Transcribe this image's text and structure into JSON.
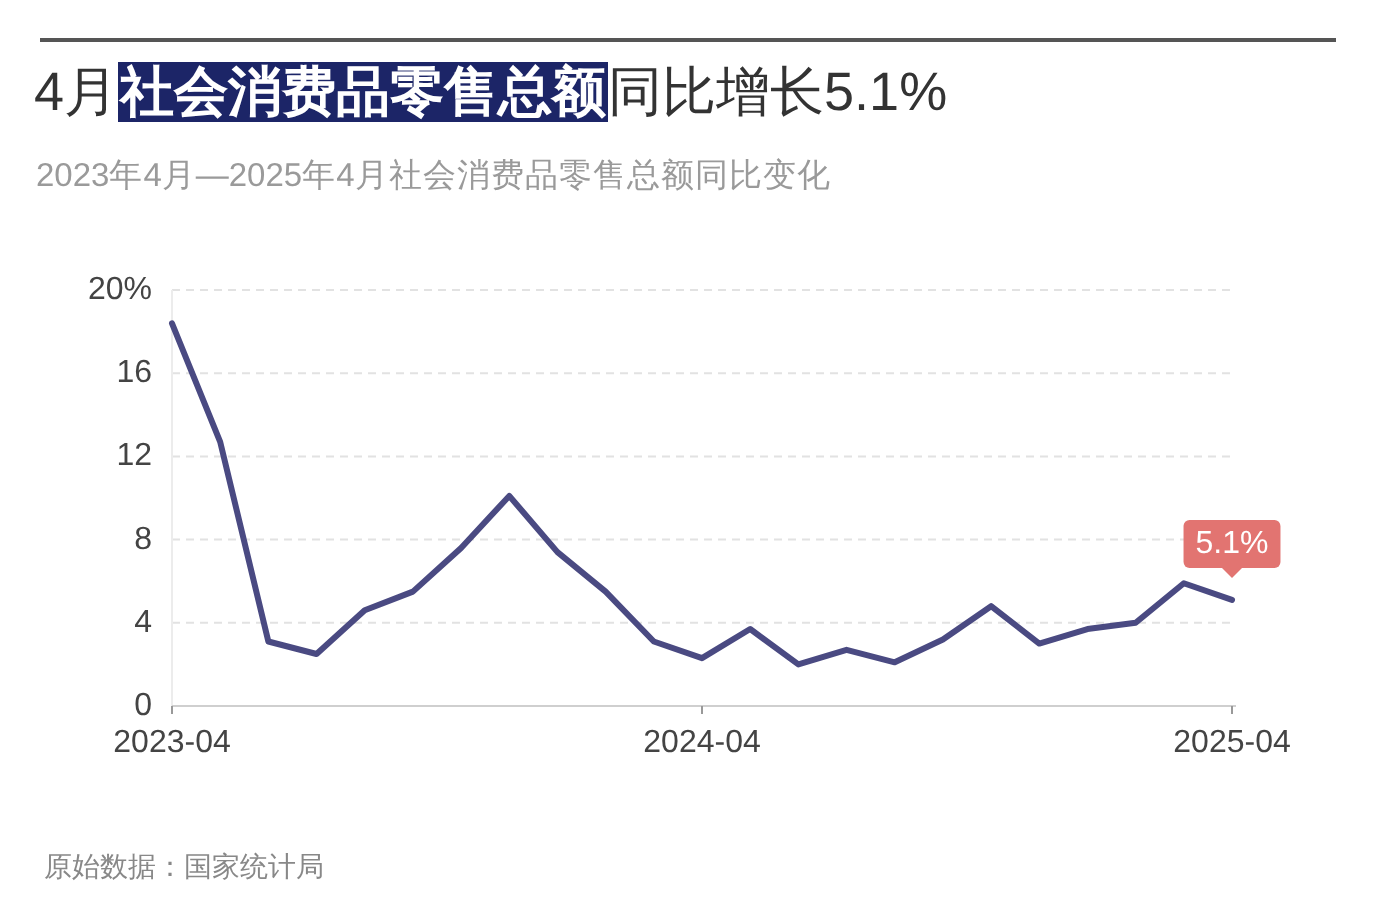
{
  "chart_data": {
    "type": "line",
    "title": "4月**社会消费品零售总额**同比增长5.1%",
    "subtitle": "2023年4月—2025年4月社会消费品零售总额同比变化",
    "categories": [
      "2023-04",
      null,
      null,
      null,
      null,
      null,
      null,
      null,
      null,
      null,
      null,
      "2024-04",
      null,
      null,
      null,
      null,
      null,
      null,
      null,
      null,
      null,
      null,
      "2025-04"
    ],
    "series": [
      {
        "color": "#4a4a82",
        "values": [
          18.4,
          12.7,
          3.1,
          2.5,
          4.6,
          5.5,
          7.6,
          10.1,
          7.4,
          5.5,
          3.1,
          2.3,
          3.7,
          2.0,
          2.7,
          2.1,
          3.2,
          4.8,
          3.0,
          3.7,
          4.0,
          5.9,
          5.1
        ],
        "value_labels": [
          null,
          null,
          null,
          null,
          null,
          null,
          null,
          null,
          null,
          null,
          null,
          null,
          null,
          null,
          null,
          null,
          null,
          null,
          null,
          null,
          null,
          null,
          "5.1%"
        ]
      }
    ],
    "ylim": [
      0,
      20
    ],
    "yticks": [
      0,
      4,
      8,
      12,
      16,
      {
        "value": 20,
        "label": "20%"
      }
    ],
    "grid": "y",
    "annotations": [
      "原始数据：国家统计局"
    ]
  }
}
